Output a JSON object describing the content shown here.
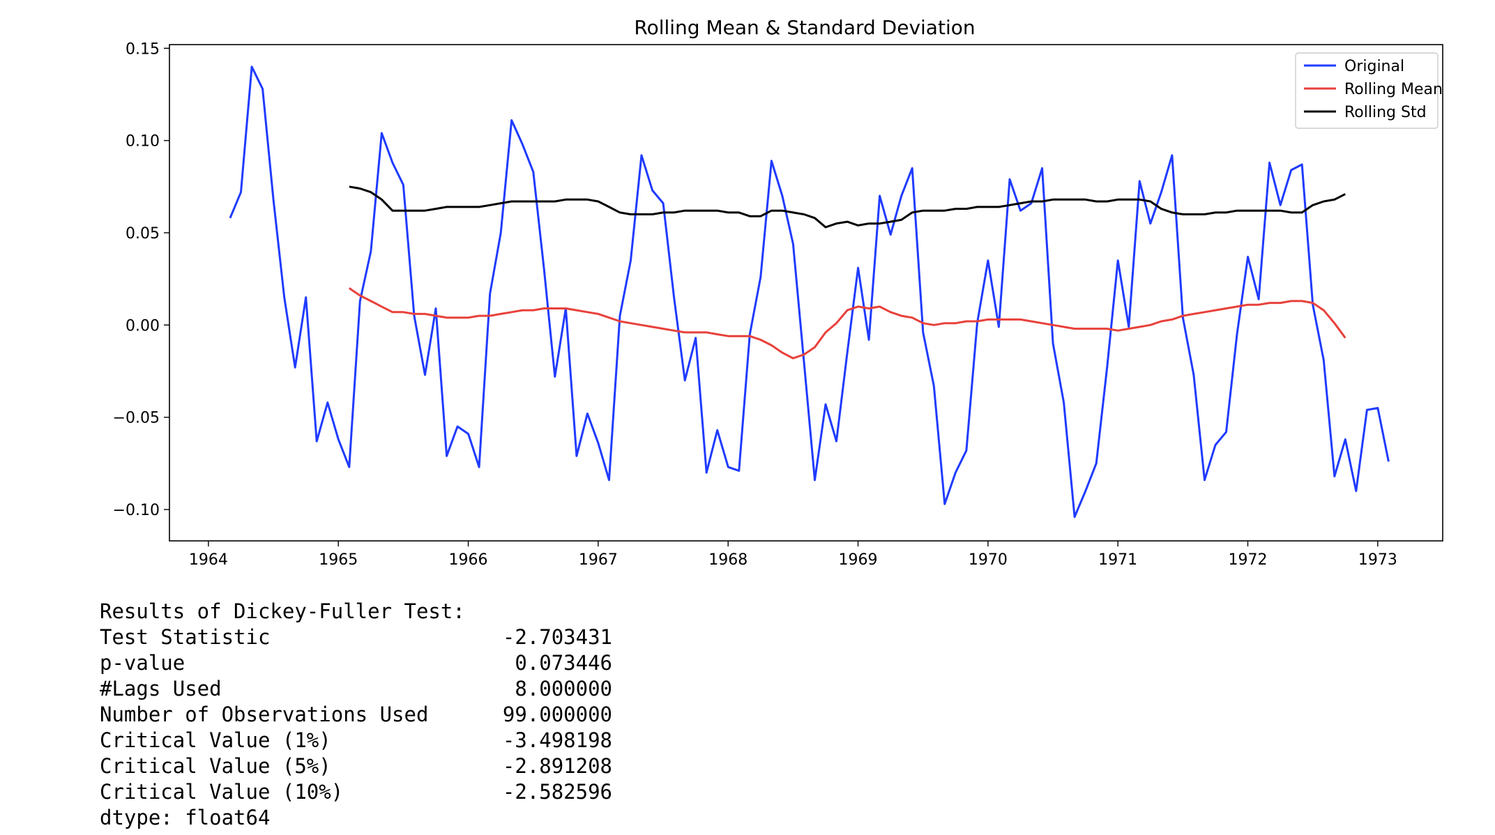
{
  "chart_data": {
    "type": "line",
    "title": "Rolling Mean & Standard Deviation",
    "xlabel": "",
    "ylabel": "",
    "xlim": [
      1963.7,
      1973.5
    ],
    "ylim": [
      -0.117,
      0.152
    ],
    "x_ticks": [
      1964,
      1965,
      1966,
      1967,
      1968,
      1969,
      1970,
      1971,
      1972,
      1973
    ],
    "y_ticks": [
      {
        "value": 0.15,
        "label": "0.15"
      },
      {
        "value": 0.1,
        "label": "0.10"
      },
      {
        "value": 0.05,
        "label": "0.05"
      },
      {
        "value": 0.0,
        "label": "0.00"
      },
      {
        "value": -0.05,
        "label": "−0.05"
      },
      {
        "value": -0.1,
        "label": "−0.10"
      }
    ],
    "grid": false,
    "legend_position": "top-right",
    "x_start": 1964.167,
    "x_step": 0.0833333,
    "series": [
      {
        "name": "Original",
        "color": "#1f3bff",
        "values": [
          0.058,
          0.072,
          0.14,
          0.128,
          0.068,
          0.015,
          -0.023,
          0.015,
          -0.063,
          -0.042,
          -0.062,
          -0.077,
          0.013,
          0.04,
          0.104,
          0.088,
          0.076,
          0.005,
          -0.027,
          0.009,
          -0.071,
          -0.055,
          -0.059,
          -0.077,
          0.017,
          0.05,
          0.111,
          0.098,
          0.083,
          0.03,
          -0.028,
          0.009,
          -0.071,
          -0.048,
          -0.064,
          -0.084,
          0.005,
          0.035,
          0.092,
          0.073,
          0.066,
          0.015,
          -0.03,
          -0.007,
          -0.08,
          -0.057,
          -0.077,
          -0.079,
          -0.005,
          0.026,
          0.089,
          0.07,
          0.044,
          -0.02,
          -0.084,
          -0.043,
          -0.063,
          -0.015,
          0.031,
          -0.008,
          0.07,
          0.049,
          0.07,
          0.085,
          -0.004,
          -0.033,
          -0.097,
          -0.08,
          -0.068,
          0.001,
          0.035,
          -0.001,
          0.079,
          0.062,
          0.066,
          0.085,
          -0.01,
          -0.042,
          -0.104,
          -0.09,
          -0.075,
          -0.023,
          0.035,
          -0.001,
          0.078,
          0.055,
          0.072,
          0.092,
          0.004,
          -0.027,
          -0.084,
          -0.065,
          -0.058,
          -0.005,
          0.037,
          0.014,
          0.088,
          0.065,
          0.084,
          0.087,
          0.011,
          -0.019,
          -0.082,
          -0.062,
          -0.09,
          -0.046,
          -0.045,
          -0.074
        ]
      },
      {
        "name": "Rolling Mean",
        "color": "#e8413b",
        "start_index": 11,
        "values": [
          0.02,
          0.016,
          0.013,
          0.01,
          0.007,
          0.007,
          0.006,
          0.006,
          0.005,
          0.004,
          0.004,
          0.004,
          0.005,
          0.005,
          0.006,
          0.007,
          0.008,
          0.008,
          0.009,
          0.009,
          0.009,
          0.008,
          0.007,
          0.006,
          0.004,
          0.002,
          0.001,
          0.0,
          -0.001,
          -0.002,
          -0.003,
          -0.004,
          -0.004,
          -0.004,
          -0.005,
          -0.006,
          -0.006,
          -0.006,
          -0.008,
          -0.011,
          -0.015,
          -0.018,
          -0.016,
          -0.012,
          -0.004,
          0.001,
          0.008,
          0.01,
          0.009,
          0.01,
          0.007,
          0.005,
          0.004,
          0.001,
          0.0,
          0.001,
          0.001,
          0.002,
          0.002,
          0.003,
          0.003,
          0.003,
          0.003,
          0.002,
          0.001,
          0.0,
          -0.001,
          -0.002,
          -0.002,
          -0.002,
          -0.002,
          -0.003,
          -0.002,
          -0.001,
          0.0,
          0.002,
          0.003,
          0.005,
          0.006,
          0.007,
          0.008,
          0.009,
          0.01,
          0.011,
          0.011,
          0.012,
          0.012,
          0.013,
          0.013,
          0.012,
          0.008,
          0.001,
          -0.007
        ]
      },
      {
        "name": "Rolling Std",
        "color": "#000000",
        "start_index": 11,
        "values": [
          0.075,
          0.074,
          0.072,
          0.068,
          0.062,
          0.062,
          0.062,
          0.062,
          0.063,
          0.064,
          0.064,
          0.064,
          0.064,
          0.065,
          0.066,
          0.067,
          0.067,
          0.067,
          0.067,
          0.067,
          0.068,
          0.068,
          0.068,
          0.067,
          0.064,
          0.061,
          0.06,
          0.06,
          0.06,
          0.061,
          0.061,
          0.062,
          0.062,
          0.062,
          0.062,
          0.061,
          0.061,
          0.059,
          0.059,
          0.062,
          0.062,
          0.061,
          0.06,
          0.058,
          0.053,
          0.055,
          0.056,
          0.054,
          0.055,
          0.055,
          0.056,
          0.057,
          0.061,
          0.062,
          0.062,
          0.062,
          0.063,
          0.063,
          0.064,
          0.064,
          0.064,
          0.065,
          0.066,
          0.067,
          0.067,
          0.068,
          0.068,
          0.068,
          0.068,
          0.067,
          0.067,
          0.068,
          0.068,
          0.068,
          0.067,
          0.063,
          0.061,
          0.06,
          0.06,
          0.06,
          0.061,
          0.061,
          0.062,
          0.062,
          0.062,
          0.062,
          0.062,
          0.061,
          0.061,
          0.065,
          0.067,
          0.068,
          0.071
        ]
      }
    ]
  },
  "adf_results": {
    "header": "Results of Dickey-Fuller Test:",
    "rows": [
      {
        "label": "Test Statistic",
        "value": "-2.703431"
      },
      {
        "label": "p-value",
        "value": "0.073446"
      },
      {
        "label": "#Lags Used",
        "value": "8.000000"
      },
      {
        "label": "Number of Observations Used",
        "value": "99.000000"
      },
      {
        "label": "Critical Value (1%)",
        "value": "-3.498198"
      },
      {
        "label": "Critical Value (5%)",
        "value": "-2.891208"
      },
      {
        "label": "Critical Value (10%)",
        "value": "-2.582596"
      }
    ],
    "dtype": "dtype: float64"
  }
}
